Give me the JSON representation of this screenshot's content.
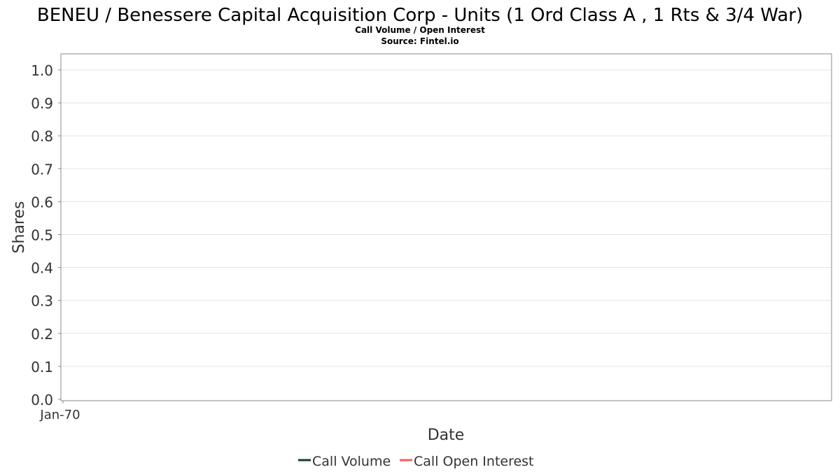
{
  "chart_data": {
    "type": "line",
    "title": "BENEU / Benessere Capital Acquisition Corp - Units (1 Ord Class A , 1 Rts & 3/4 War)",
    "subtitle": "Call Volume / Open Interest",
    "source": "Source: Fintel.io",
    "xlabel": "Date",
    "ylabel": "Shares",
    "x_ticks": [
      "Jan-70"
    ],
    "y_ticks": [
      "0.0",
      "0.1",
      "0.2",
      "0.3",
      "0.4",
      "0.5",
      "0.6",
      "0.7",
      "0.8",
      "0.9",
      "1.0"
    ],
    "ylim": [
      0,
      1.05
    ],
    "grid": true,
    "legend_position": "bottom",
    "series": [
      {
        "name": "Call Volume",
        "color": "#1a3a2a",
        "x": [],
        "y": []
      },
      {
        "name": "Call Open Interest",
        "color": "#ff5a5a",
        "x": [],
        "y": []
      }
    ]
  }
}
